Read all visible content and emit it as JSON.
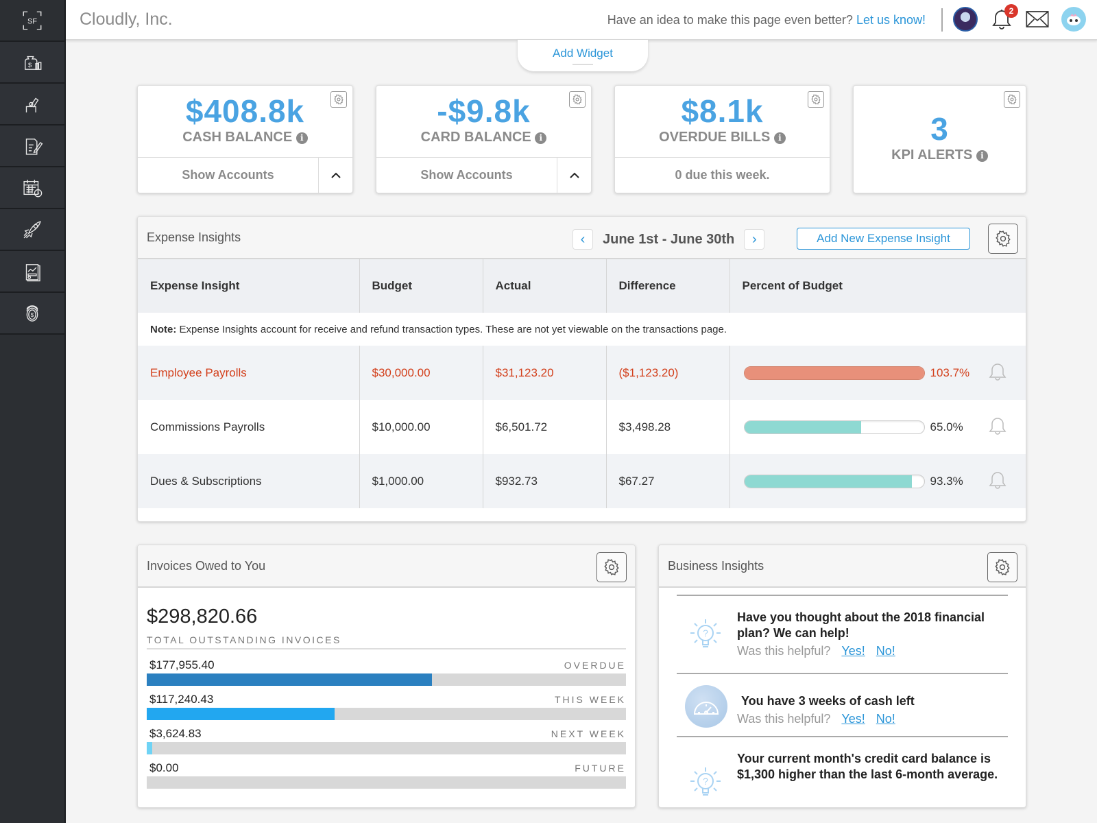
{
  "sidebar": {
    "logo": "SF",
    "items": [
      {
        "icon": "money-bag-icon"
      },
      {
        "icon": "hand-pen-icon"
      },
      {
        "icon": "document-edit-icon"
      },
      {
        "icon": "calendar-clock-icon"
      },
      {
        "icon": "rocket-icon"
      },
      {
        "icon": "report-chart-icon"
      },
      {
        "icon": "coin-stack-icon"
      }
    ]
  },
  "header": {
    "company": "Cloudly, Inc.",
    "feedback_text": "Have an idea to make this page even better?",
    "feedback_link": "Let us know!",
    "notification_count": "2"
  },
  "add_widget": "Add Widget",
  "kpis": [
    {
      "value": "$408.8k",
      "label": "CASH BALANCE",
      "footer": "Show Accounts",
      "chevron": "^"
    },
    {
      "value": "-$9.8k",
      "label": "CARD BALANCE",
      "footer": "Show Accounts",
      "chevron": "^"
    },
    {
      "value": "$8.1k",
      "label": "OVERDUE BILLS",
      "footer": "0 due this week."
    },
    {
      "value": "3",
      "label": "KPI ALERTS"
    }
  ],
  "expense": {
    "title": "Expense Insights",
    "date_range": "June 1st - June 30th",
    "prev": "‹",
    "next": "›",
    "add_button": "Add New Expense Insight",
    "columns": [
      "Expense Insight",
      "Budget",
      "Actual",
      "Difference",
      "Percent of Budget"
    ],
    "note_label": "Note:",
    "note_text": " Expense Insights account for receive and refund transaction types. These are not yet viewable on the transactions page.",
    "rows": [
      {
        "name": "Employee Payrolls",
        "budget": "$30,000.00",
        "actual": "$31,123.20",
        "difference": "($1,123.20)",
        "percent": "103.7%",
        "percent_value": 103.7,
        "over": true
      },
      {
        "name": "Commissions Payrolls",
        "budget": "$10,000.00",
        "actual": "$6,501.72",
        "difference": "$3,498.28",
        "percent": "65.0%",
        "percent_value": 65.0,
        "over": false
      },
      {
        "name": "Dues & Subscriptions",
        "budget": "$1,000.00",
        "actual": "$932.73",
        "difference": "$67.27",
        "percent": "93.3%",
        "percent_value": 93.3,
        "over": false
      }
    ]
  },
  "invoices": {
    "title": "Invoices Owed to You",
    "total": "$298,820.66",
    "total_label": "TOTAL OUTSTANDING INVOICES",
    "rows": [
      {
        "amount": "$177,955.40",
        "category": "OVERDUE",
        "fraction": 0.595,
        "color": "#2b80c0"
      },
      {
        "amount": "$117,240.43",
        "category": "THIS WEEK",
        "fraction": 0.392,
        "color": "#22a7f0"
      },
      {
        "amount": "$3,624.83",
        "category": "NEXT WEEK",
        "fraction": 0.012,
        "color": "#6fd3f5"
      },
      {
        "amount": "$0.00",
        "category": "FUTURE",
        "fraction": 0,
        "color": "#6fd3f5"
      }
    ]
  },
  "business": {
    "title": "Business Insights",
    "helpful_prompt": "Was this helpful?",
    "yes": "Yes!",
    "no": "No!",
    "items": [
      {
        "icon": "lightbulb-question-icon",
        "text": "Have you thought about the 2018 financial plan? We can help!"
      },
      {
        "icon": "speedometer-icon",
        "text": "You have 3 weeks of cash left"
      },
      {
        "icon": "lightbulb-question-icon",
        "text": "Your current month's credit card balance is $1,300 higher than the last 6-month average."
      }
    ]
  }
}
